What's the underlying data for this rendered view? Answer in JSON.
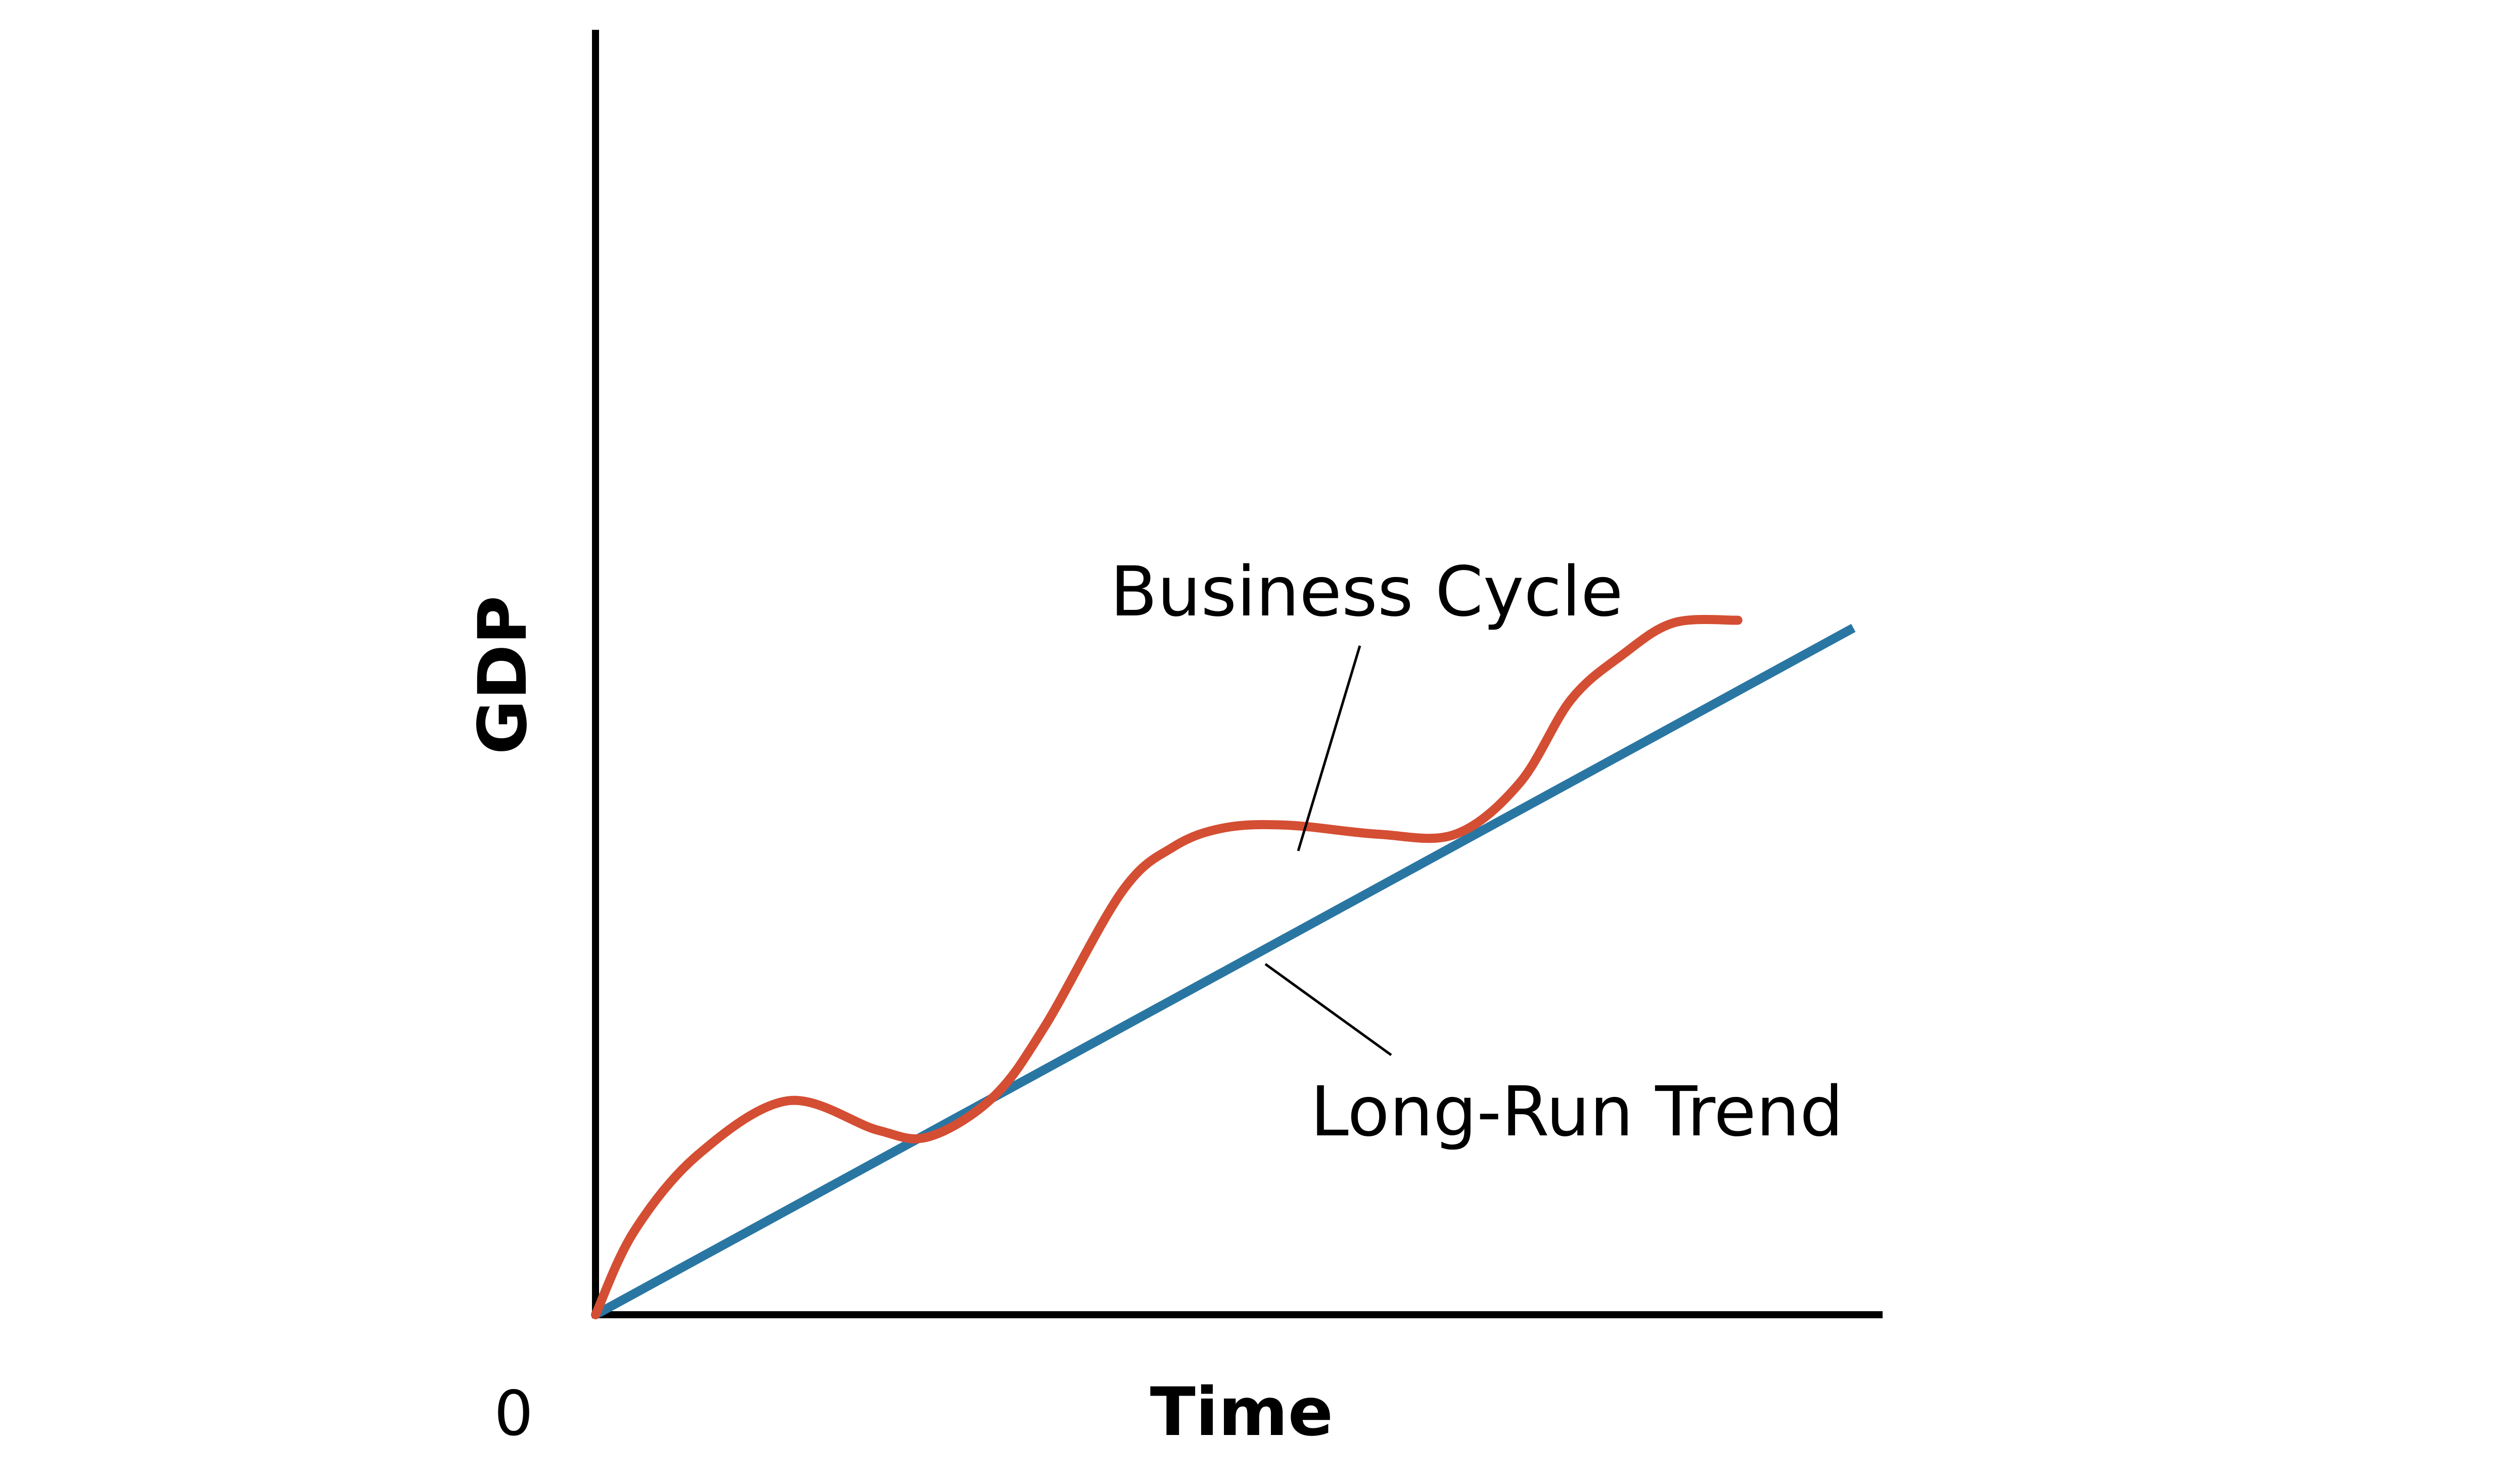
{
  "chart_data": {
    "type": "line",
    "xlabel": "Time",
    "ylabel": "GDP",
    "origin_label": "0",
    "xlim": [
      0,
      100
    ],
    "ylim": [
      0,
      100
    ],
    "grid": false,
    "legend": "none",
    "series": [
      {
        "name": "Long-Run Trend",
        "color": "#2A76A3",
        "x": [
          0,
          98
        ],
        "y": [
          0,
          53.6
        ]
      },
      {
        "name": "Business Cycle",
        "color": "#D44E34",
        "x": [
          0,
          3,
          8,
          15,
          22,
          26,
          31,
          35,
          41,
          45,
          49,
          54,
          61,
          67,
          72,
          76,
          80,
          84,
          89
        ],
        "y": [
          0,
          6.5,
          12.5,
          16.7,
          14.4,
          13.9,
          17,
          22.5,
          33,
          36.5,
          38,
          38.2,
          37.5,
          37.5,
          41.5,
          48,
          51.5,
          54,
          54.2
        ]
      }
    ]
  }
}
